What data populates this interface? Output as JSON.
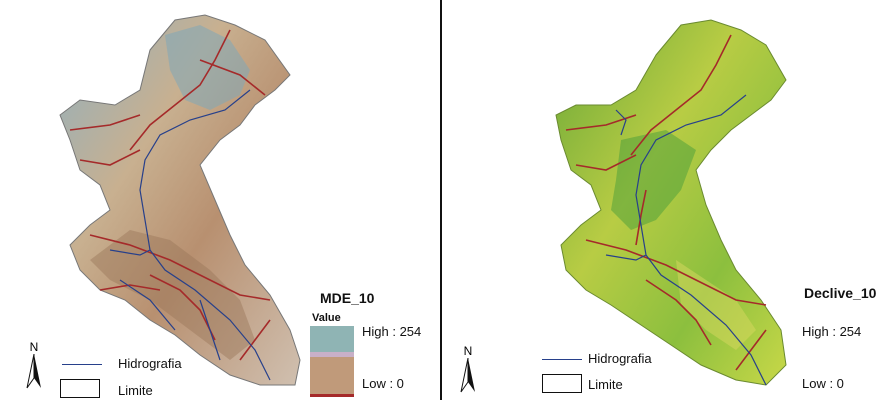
{
  "left_map": {
    "title": "MDE_10",
    "value_label": "Value",
    "high_label": "High : 254",
    "low_label": "Low : 0",
    "ramp_colors": [
      "#8fb4b4",
      "#c8b0c8",
      "#c09a7a",
      "#a52a2a"
    ],
    "terrain_colors": [
      "#b8c8c8",
      "#c8a888",
      "#7aa8b8"
    ]
  },
  "right_map": {
    "title": "Declive_10",
    "high_label": "High : 254",
    "low_label": "Low : 0",
    "terrain_colors": [
      "#7cb342",
      "#c8d848",
      "#3f9a3a"
    ]
  },
  "legend": {
    "hydro_label": "Hidrografia",
    "limit_label": "Limite",
    "north_label": "N",
    "hydro_color": "#27408b",
    "road_color": "#a52a2a"
  }
}
